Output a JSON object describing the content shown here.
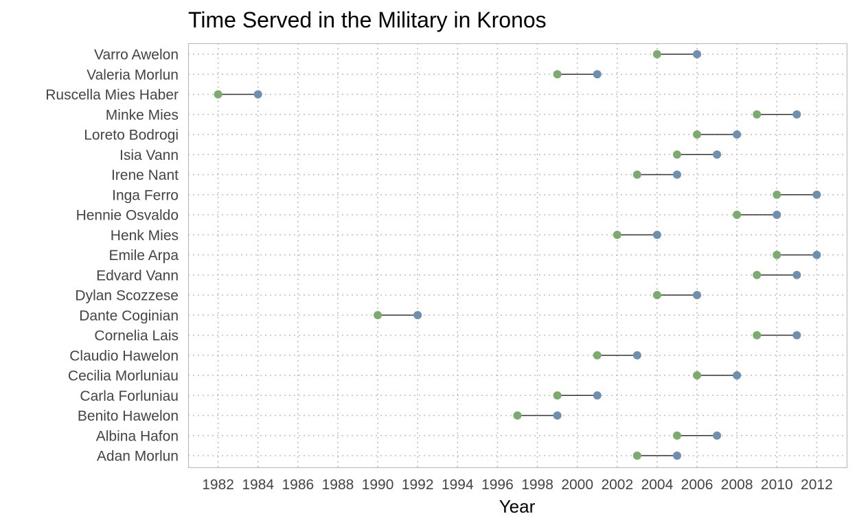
{
  "chart_data": {
    "type": "dumbbell",
    "title": "Time Served in the Military in Kronos",
    "xlabel": "Year",
    "ylabel": "",
    "xlim": [
      1980.5,
      2013.5
    ],
    "x_ticks": [
      1982,
      1984,
      1986,
      1988,
      1990,
      1992,
      1994,
      1996,
      1998,
      2000,
      2002,
      2004,
      2006,
      2008,
      2010,
      2012
    ],
    "grid": true,
    "start_color": "#7bab6e",
    "end_color": "#6e8fad",
    "segment_color": "#333333",
    "categories": [
      "Varro Awelon",
      "Valeria Morlun",
      "Ruscella Mies Haber",
      "Minke Mies",
      "Loreto Bodrogi",
      "Isia Vann",
      "Irene Nant",
      "Inga Ferro",
      "Hennie Osvaldo",
      "Henk Mies",
      "Emile Arpa",
      "Edvard Vann",
      "Dylan Scozzese",
      "Dante Coginian",
      "Cornelia Lais",
      "Claudio Hawelon",
      "Cecilia Morluniau",
      "Carla Forluniau",
      "Benito Hawelon",
      "Albina Hafon",
      "Adan Morlun"
    ],
    "start": [
      2004,
      1999,
      1982,
      2009,
      2006,
      2005,
      2003,
      2010,
      2008,
      2002,
      2010,
      2009,
      2004,
      1990,
      2009,
      2001,
      2006,
      1999,
      1997,
      2005,
      2003
    ],
    "end": [
      2006,
      2001,
      1984,
      2011,
      2008,
      2007,
      2005,
      2012,
      2010,
      2004,
      2012,
      2011,
      2006,
      1992,
      2011,
      2003,
      2008,
      2001,
      1999,
      2007,
      2005
    ]
  }
}
